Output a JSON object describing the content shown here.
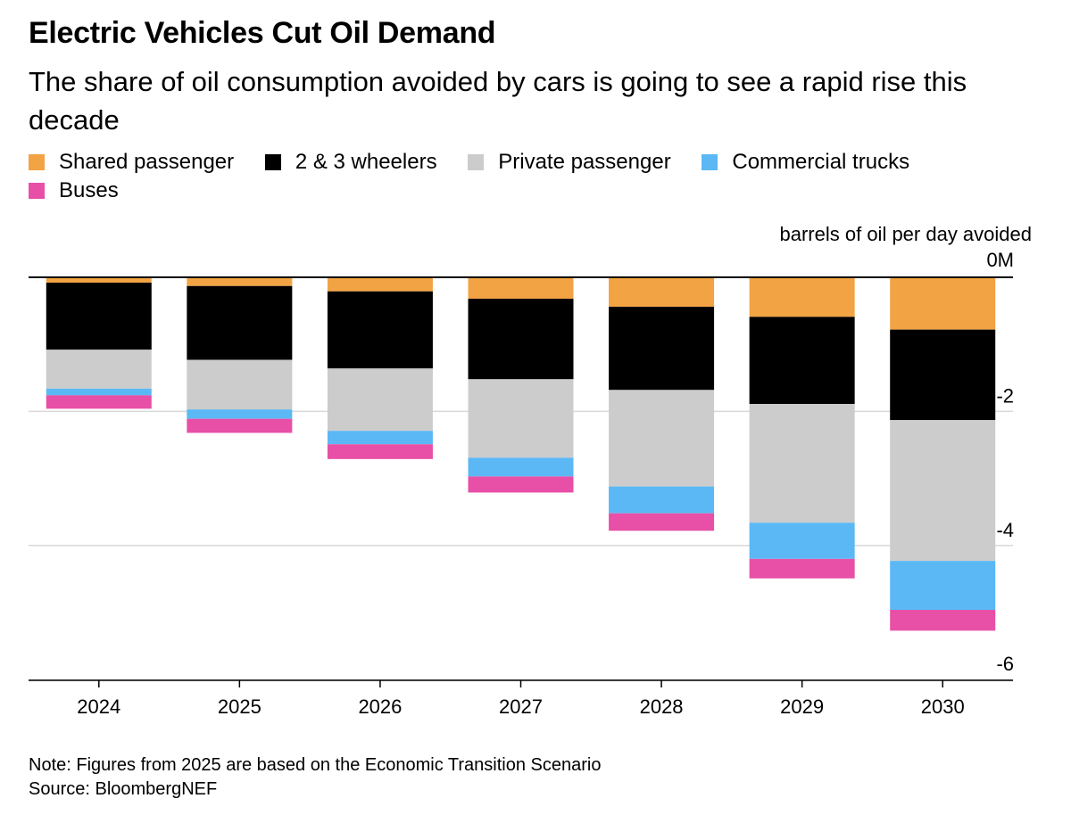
{
  "title": "Electric Vehicles Cut Oil Demand",
  "subtitle": "The share of oil consumption avoided by cars is going to see a rapid rise this decade",
  "note": "Note: Figures from 2025 are based on the Economic Transition Scenario",
  "source": "Source: BloombergNEF",
  "legend": [
    {
      "label": "Shared passenger",
      "color": "#f2a344"
    },
    {
      "label": "2 & 3 wheelers",
      "color": "#000000"
    },
    {
      "label": "Private passenger",
      "color": "#cccccc"
    },
    {
      "label": "Commercial trucks",
      "color": "#5bb8f5"
    },
    {
      "label": "Buses",
      "color": "#e84fa6"
    }
  ],
  "chart_data": {
    "type": "bar",
    "stacked": true,
    "ylabel": "barrels of oil per day avoided",
    "ytick_labels": [
      "0M",
      "-2",
      "-4",
      "-6"
    ],
    "yticks": [
      0,
      -2,
      -4,
      -6
    ],
    "ylim": [
      -6,
      0
    ],
    "grid": true,
    "categories": [
      "2024",
      "2025",
      "2026",
      "2027",
      "2028",
      "2029",
      "2030"
    ],
    "series": [
      {
        "name": "Shared passenger",
        "color": "#f2a344",
        "values": [
          -0.08,
          -0.13,
          -0.21,
          -0.32,
          -0.44,
          -0.59,
          -0.78
        ]
      },
      {
        "name": "2 & 3 wheelers",
        "color": "#000000",
        "values": [
          -1.0,
          -1.1,
          -1.15,
          -1.2,
          -1.24,
          -1.3,
          -1.35
        ]
      },
      {
        "name": "Private passenger",
        "color": "#cccccc",
        "values": [
          -0.58,
          -0.74,
          -0.93,
          -1.17,
          -1.44,
          -1.77,
          -2.1
        ]
      },
      {
        "name": "Commercial trucks",
        "color": "#5bb8f5",
        "values": [
          -0.1,
          -0.14,
          -0.2,
          -0.28,
          -0.4,
          -0.54,
          -0.73
        ]
      },
      {
        "name": "Buses",
        "color": "#e84fa6",
        "values": [
          -0.2,
          -0.21,
          -0.22,
          -0.24,
          -0.26,
          -0.29,
          -0.31
        ]
      }
    ]
  }
}
